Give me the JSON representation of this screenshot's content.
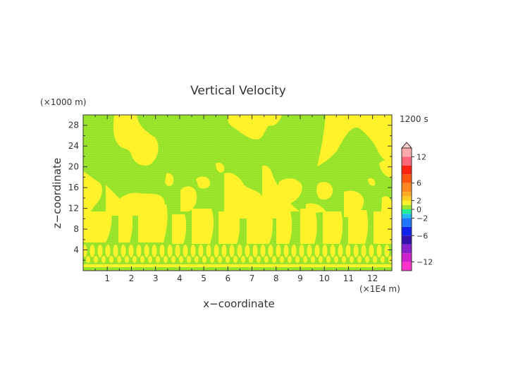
{
  "chart_data": {
    "type": "heatmap",
    "title": "Vertical Velocity",
    "xlabel": "x−coordinate",
    "ylabel": "z−coordinate",
    "x_unit": "(×1E4 m)",
    "y_unit": "(×1000 m)",
    "time_label": "1200 s",
    "xlim": [
      0,
      12.8
    ],
    "ylim": [
      0,
      30
    ],
    "x_ticks": [
      "1",
      "2",
      "3",
      "4",
      "5",
      "6",
      "7",
      "8",
      "9",
      "10",
      "11",
      "12"
    ],
    "y_ticks": [
      "4",
      "8",
      "12",
      "16",
      "20",
      "24",
      "28"
    ],
    "colorbar": {
      "tick_labels": [
        "12",
        "6",
        "2",
        "0",
        "−2",
        "−6",
        "−12"
      ],
      "tick_values": [
        12,
        6,
        2,
        0,
        -2,
        -6,
        -12
      ],
      "range": [
        -14,
        14
      ],
      "extend": "max"
    },
    "colors": {
      "background_field": "#9BE62D",
      "positive_region": "#FFF22A"
    }
  }
}
